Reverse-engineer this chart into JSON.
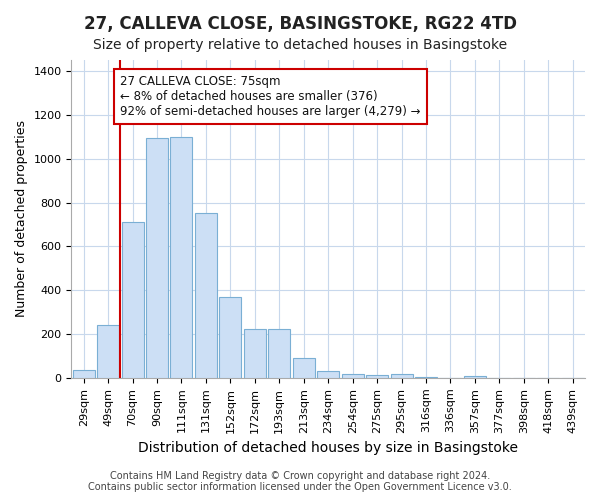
{
  "title": "27, CALLEVA CLOSE, BASINGSTOKE, RG22 4TD",
  "subtitle": "Size of property relative to detached houses in Basingstoke",
  "xlabel": "Distribution of detached houses by size in Basingstoke",
  "ylabel": "Number of detached properties",
  "categories": [
    "29sqm",
    "49sqm",
    "70sqm",
    "90sqm",
    "111sqm",
    "131sqm",
    "152sqm",
    "172sqm",
    "193sqm",
    "213sqm",
    "234sqm",
    "254sqm",
    "275sqm",
    "295sqm",
    "316sqm",
    "336sqm",
    "357sqm",
    "377sqm",
    "398sqm",
    "418sqm",
    "439sqm"
  ],
  "values": [
    35,
    240,
    710,
    1095,
    1100,
    750,
    370,
    225,
    225,
    90,
    30,
    20,
    15,
    20,
    5,
    0,
    10,
    0,
    0,
    0,
    0
  ],
  "bar_color": "#ccdff5",
  "bar_edge_color": "#7aafd4",
  "vline_x": 1.5,
  "vline_color": "#cc0000",
  "annotation_text": "27 CALLEVA CLOSE: 75sqm\n← 8% of detached houses are smaller (376)\n92% of semi-detached houses are larger (4,279) →",
  "annotation_box_facecolor": "#ffffff",
  "annotation_box_edgecolor": "#cc0000",
  "ylim": [
    0,
    1450
  ],
  "yticks": [
    0,
    200,
    400,
    600,
    800,
    1000,
    1200,
    1400
  ],
  "footer1": "Contains HM Land Registry data © Crown copyright and database right 2024.",
  "footer2": "Contains public sector information licensed under the Open Government Licence v3.0.",
  "bg_color": "#ffffff",
  "plot_bg_color": "#ffffff",
  "grid_color": "#c8d8ec",
  "title_fontsize": 12,
  "subtitle_fontsize": 10,
  "xlabel_fontsize": 10,
  "ylabel_fontsize": 9,
  "tick_fontsize": 8,
  "annotation_fontsize": 8.5,
  "footer_fontsize": 7
}
